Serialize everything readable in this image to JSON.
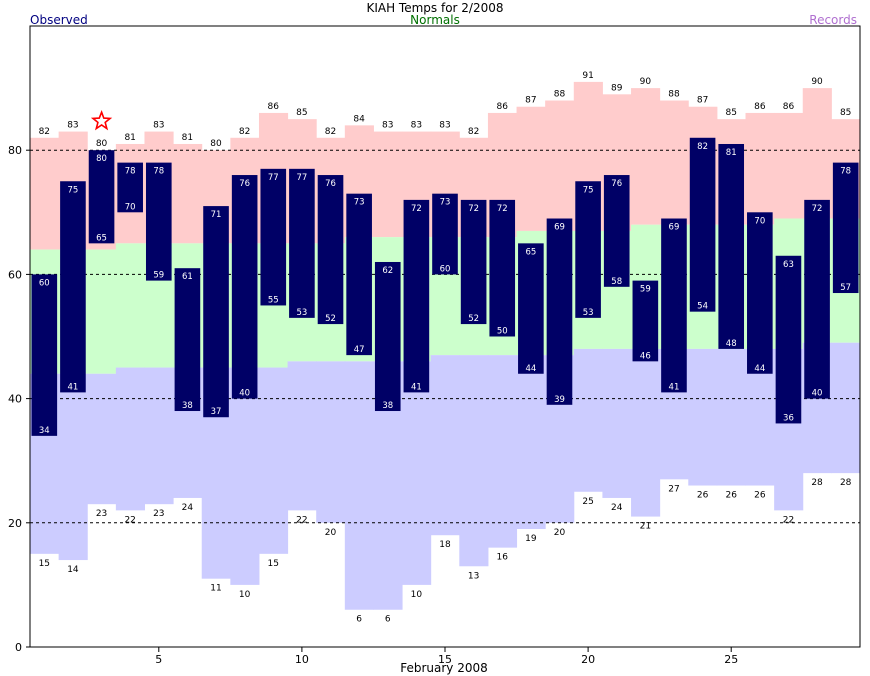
{
  "chart_data": {
    "type": "bar",
    "title": "KIAH Temps for 2/2008",
    "subtitle": "Normals",
    "legend": {
      "observed": "Observed",
      "records": "Records",
      "placement": "top"
    },
    "xlabel": "February 2008",
    "ylabel": "",
    "xlim": [
      1,
      29
    ],
    "ylim": [
      0,
      100
    ],
    "x_ticks": [
      5,
      10,
      15,
      20,
      25
    ],
    "y_ticks": [
      0,
      20,
      40,
      60,
      80
    ],
    "grid": {
      "dashed_lines_at": [
        20,
        40,
        60,
        80
      ]
    },
    "days": [
      1,
      2,
      3,
      4,
      5,
      6,
      7,
      8,
      9,
      10,
      11,
      12,
      13,
      14,
      15,
      16,
      17,
      18,
      19,
      20,
      21,
      22,
      23,
      24,
      25,
      26,
      27,
      28,
      29
    ],
    "series": [
      {
        "name": "Record High",
        "values": [
          82,
          83,
          80,
          81,
          83,
          81,
          80,
          82,
          86,
          85,
          82,
          84,
          83,
          83,
          83,
          82,
          86,
          87,
          88,
          91,
          89,
          90,
          88,
          87,
          85,
          86,
          86,
          90,
          85
        ]
      },
      {
        "name": "Normal High",
        "values": [
          64,
          64,
          64,
          65,
          65,
          65,
          65,
          65,
          65,
          65,
          65,
          66,
          66,
          66,
          66,
          66,
          66,
          67,
          67,
          67,
          67,
          68,
          68,
          68,
          68,
          68,
          69,
          69,
          69
        ]
      },
      {
        "name": "Normal Low",
        "values": [
          44,
          44,
          44,
          45,
          45,
          45,
          45,
          45,
          45,
          46,
          46,
          46,
          46,
          46,
          47,
          47,
          47,
          47,
          47,
          48,
          48,
          48,
          48,
          48,
          48,
          48,
          48,
          49,
          49
        ]
      },
      {
        "name": "Record Low",
        "values": [
          15,
          14,
          23,
          22,
          23,
          24,
          11,
          10,
          15,
          22,
          20,
          6,
          6,
          10,
          18,
          13,
          16,
          19,
          20,
          25,
          24,
          21,
          27,
          26,
          26,
          26,
          22,
          28,
          28
        ]
      },
      {
        "name": "Observed High",
        "values": [
          60,
          75,
          80,
          78,
          78,
          61,
          71,
          76,
          77,
          77,
          76,
          73,
          62,
          72,
          73,
          72,
          72,
          65,
          69,
          75,
          76,
          59,
          69,
          82,
          81,
          70,
          63,
          72,
          78
        ]
      },
      {
        "name": "Observed Low",
        "values": [
          34,
          41,
          65,
          70,
          59,
          38,
          37,
          40,
          55,
          53,
          52,
          47,
          38,
          41,
          60,
          52,
          50,
          44,
          39,
          53,
          58,
          46,
          41,
          54,
          48,
          44,
          36,
          40,
          57
        ]
      }
    ],
    "annotations": [
      {
        "type": "record-star",
        "day": 3,
        "value": 80
      }
    ],
    "colors": {
      "record_band": "#ffcccc",
      "normal_band": "#ccffcc",
      "low_band": "#ccccff",
      "observed_bar": "#000066",
      "observed_text": "#ffffff",
      "gridline": "#000000",
      "star": "#ff0000",
      "normals_label": "#007000",
      "observed_label": "#000080",
      "records_label": "#b070d0"
    }
  }
}
